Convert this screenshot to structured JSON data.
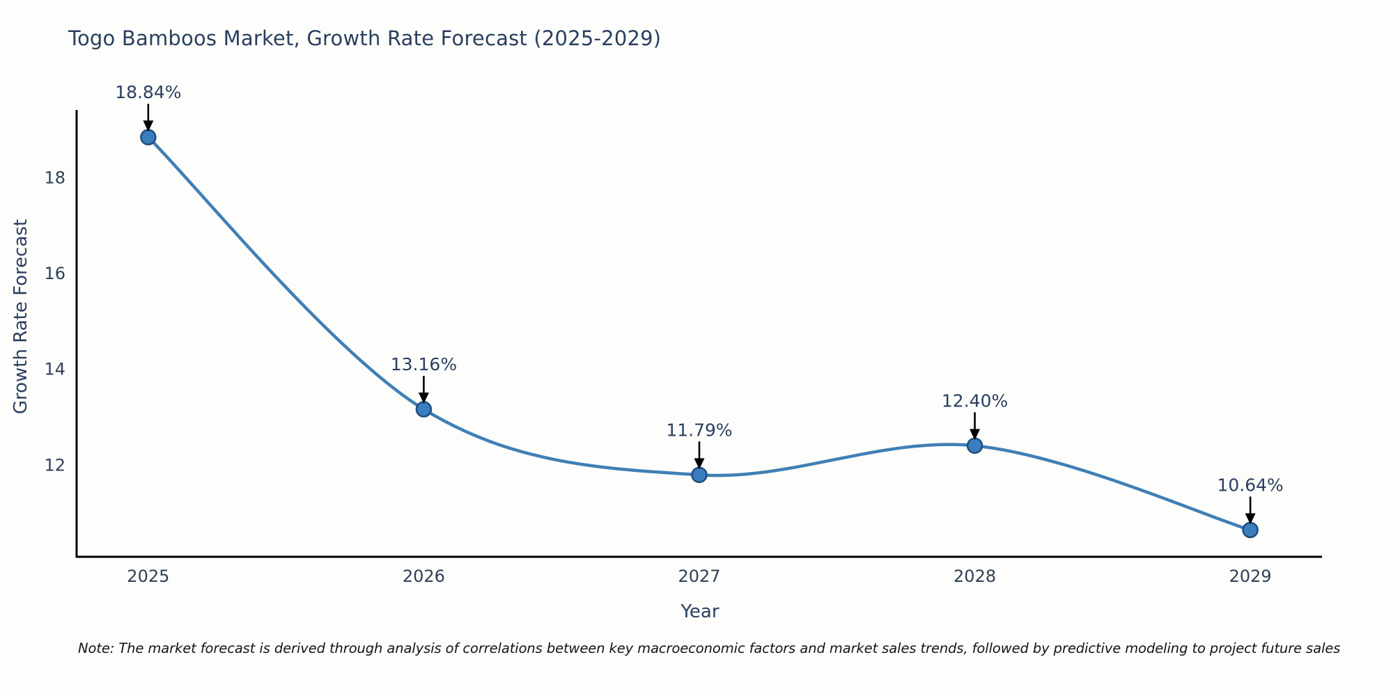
{
  "chart_data": {
    "type": "line",
    "title": "Togo Bamboos Market, Growth Rate Forecast (2025-2029)",
    "xlabel": "Year",
    "ylabel": "Growth Rate Forecast",
    "categories": [
      "2025",
      "2026",
      "2027",
      "2028",
      "2029"
    ],
    "x": [
      2025,
      2026,
      2027,
      2028,
      2029
    ],
    "series": [
      {
        "name": "Growth Rate Forecast",
        "values": [
          18.84,
          13.16,
          11.79,
          12.4,
          10.64
        ]
      }
    ],
    "point_labels": [
      "18.84%",
      "13.16%",
      "11.79%",
      "12.40%",
      "10.64%"
    ],
    "yticks": [
      12,
      14,
      16,
      18
    ],
    "ylim": [
      10.08,
      19.38
    ],
    "xlim": [
      2024.74,
      2029.26
    ],
    "grid": false,
    "legend": "none",
    "line_shape": "spline",
    "annotation_style": "value label with black down-arrow to each marker",
    "colors": {
      "line": "#3f7fb5",
      "marker_fill": "#3a7ebf",
      "marker_edge": "#1f4e79",
      "arrow": "#000000",
      "axis": "#000000",
      "text": "#2a3f5f",
      "note": "#141414",
      "background": "#fdfdfb"
    }
  },
  "note": "Note: The market forecast is derived through analysis of correlations between key macroeconomic factors and market sales trends, followed by predictive modeling to project future sales"
}
